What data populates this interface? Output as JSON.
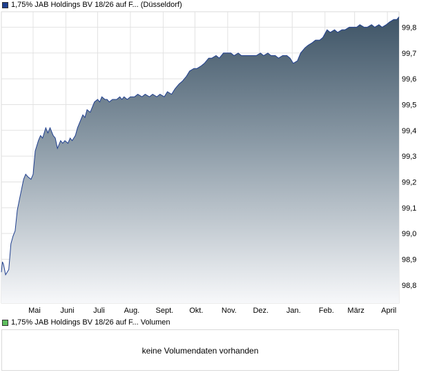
{
  "price_chart": {
    "legend_label": "1,75% JAB Holdings BV 18/26 auf F... (Düsseldorf)",
    "legend_color": "#1f3f8f"
  },
  "volume_chart": {
    "legend_label": "1,75% JAB Holdings BV 18/26 auf F... Volumen",
    "legend_color": "#5fbf5f",
    "empty_message": "keine Volumendaten vorhanden"
  },
  "chart_data": {
    "type": "area",
    "title": "",
    "xlabel": "",
    "ylabel": "",
    "ylim": [
      98.73,
      99.86
    ],
    "y_ticks": [
      "99,8",
      "99,7",
      "99,6",
      "99,5",
      "99,4",
      "99,3",
      "99,2",
      "99,1",
      "99,0",
      "98,9",
      "98,8"
    ],
    "y_tick_values": [
      99.8,
      99.7,
      99.6,
      99.5,
      99.4,
      99.3,
      99.2,
      99.1,
      99.0,
      98.9,
      98.8
    ],
    "x_ticks": [
      "Mai",
      "Juni",
      "Juli",
      "Aug.",
      "Sept.",
      "Okt.",
      "Nov.",
      "Dez.",
      "Jan.",
      "Feb.",
      "März",
      "April"
    ],
    "x_tick_dates": [
      "2024-05-01",
      "2024-06-01",
      "2024-07-01",
      "2024-08-01",
      "2024-09-01",
      "2024-10-01",
      "2024-11-01",
      "2024-12-01",
      "2025-01-01",
      "2025-02-01",
      "2025-03-01",
      "2025-04-01"
    ],
    "x_range": [
      "2024-04-01",
      "2025-04-12"
    ],
    "grid": true,
    "series": [
      {
        "name": "1,75% JAB Holdings BV 18/26 auf F... (Düsseldorf)",
        "color": "#1f3f8f",
        "points": [
          [
            "2024-04-01",
            98.85
          ],
          [
            "2024-04-02",
            98.89
          ],
          [
            "2024-04-03",
            98.88
          ],
          [
            "2024-04-05",
            98.84
          ],
          [
            "2024-04-08",
            98.86
          ],
          [
            "2024-04-10",
            98.96
          ],
          [
            "2024-04-12",
            98.99
          ],
          [
            "2024-04-14",
            99.01
          ],
          [
            "2024-04-16",
            99.09
          ],
          [
            "2024-04-18",
            99.13
          ],
          [
            "2024-04-20",
            99.17
          ],
          [
            "2024-04-22",
            99.21
          ],
          [
            "2024-04-24",
            99.23
          ],
          [
            "2024-04-26",
            99.22
          ],
          [
            "2024-04-29",
            99.21
          ],
          [
            "2024-05-01",
            99.23
          ],
          [
            "2024-05-03",
            99.32
          ],
          [
            "2024-05-06",
            99.36
          ],
          [
            "2024-05-08",
            99.38
          ],
          [
            "2024-05-10",
            99.37
          ],
          [
            "2024-05-13",
            99.41
          ],
          [
            "2024-05-15",
            99.39
          ],
          [
            "2024-05-17",
            99.41
          ],
          [
            "2024-05-20",
            99.38
          ],
          [
            "2024-05-22",
            99.37
          ],
          [
            "2024-05-24",
            99.33
          ],
          [
            "2024-05-27",
            99.36
          ],
          [
            "2024-05-29",
            99.35
          ],
          [
            "2024-05-31",
            99.36
          ],
          [
            "2024-06-03",
            99.35
          ],
          [
            "2024-06-05",
            99.37
          ],
          [
            "2024-06-07",
            99.36
          ],
          [
            "2024-06-10",
            99.38
          ],
          [
            "2024-06-12",
            99.41
          ],
          [
            "2024-06-14",
            99.43
          ],
          [
            "2024-06-17",
            99.46
          ],
          [
            "2024-06-19",
            99.45
          ],
          [
            "2024-06-21",
            99.48
          ],
          [
            "2024-06-24",
            99.47
          ],
          [
            "2024-06-26",
            99.49
          ],
          [
            "2024-06-28",
            99.51
          ],
          [
            "2024-07-01",
            99.52
          ],
          [
            "2024-07-03",
            99.51
          ],
          [
            "2024-07-05",
            99.53
          ],
          [
            "2024-07-08",
            99.52
          ],
          [
            "2024-07-10",
            99.52
          ],
          [
            "2024-07-12",
            99.51
          ],
          [
            "2024-07-15",
            99.52
          ],
          [
            "2024-07-17",
            99.52
          ],
          [
            "2024-07-19",
            99.52
          ],
          [
            "2024-07-22",
            99.53
          ],
          [
            "2024-07-24",
            99.52
          ],
          [
            "2024-07-26",
            99.53
          ],
          [
            "2024-07-29",
            99.52
          ],
          [
            "2024-08-01",
            99.53
          ],
          [
            "2024-08-05",
            99.53
          ],
          [
            "2024-08-08",
            99.54
          ],
          [
            "2024-08-12",
            99.53
          ],
          [
            "2024-08-15",
            99.54
          ],
          [
            "2024-08-19",
            99.53
          ],
          [
            "2024-08-22",
            99.54
          ],
          [
            "2024-08-26",
            99.53
          ],
          [
            "2024-08-29",
            99.54
          ],
          [
            "2024-09-02",
            99.53
          ],
          [
            "2024-09-05",
            99.55
          ],
          [
            "2024-09-09",
            99.54
          ],
          [
            "2024-09-12",
            99.56
          ],
          [
            "2024-09-16",
            99.58
          ],
          [
            "2024-09-19",
            99.59
          ],
          [
            "2024-09-23",
            99.61
          ],
          [
            "2024-09-26",
            99.63
          ],
          [
            "2024-09-30",
            99.64
          ],
          [
            "2024-10-03",
            99.64
          ],
          [
            "2024-10-07",
            99.65
          ],
          [
            "2024-10-10",
            99.66
          ],
          [
            "2024-10-14",
            99.68
          ],
          [
            "2024-10-17",
            99.68
          ],
          [
            "2024-10-21",
            99.69
          ],
          [
            "2024-10-24",
            99.68
          ],
          [
            "2024-10-28",
            99.7
          ],
          [
            "2024-10-31",
            99.7
          ],
          [
            "2024-11-04",
            99.7
          ],
          [
            "2024-11-07",
            99.69
          ],
          [
            "2024-11-11",
            99.7
          ],
          [
            "2024-11-14",
            99.69
          ],
          [
            "2024-11-18",
            99.69
          ],
          [
            "2024-11-21",
            99.69
          ],
          [
            "2024-11-25",
            99.69
          ],
          [
            "2024-11-28",
            99.69
          ],
          [
            "2024-12-02",
            99.7
          ],
          [
            "2024-12-05",
            99.69
          ],
          [
            "2024-12-09",
            99.7
          ],
          [
            "2024-12-12",
            99.69
          ],
          [
            "2024-12-16",
            99.69
          ],
          [
            "2024-12-19",
            99.68
          ],
          [
            "2024-12-23",
            99.69
          ],
          [
            "2024-12-27",
            99.69
          ],
          [
            "2024-12-30",
            99.68
          ],
          [
            "2025-01-02",
            99.66
          ],
          [
            "2025-01-06",
            99.67
          ],
          [
            "2025-01-09",
            99.7
          ],
          [
            "2025-01-13",
            99.72
          ],
          [
            "2025-01-16",
            99.73
          ],
          [
            "2025-01-20",
            99.74
          ],
          [
            "2025-01-23",
            99.75
          ],
          [
            "2025-01-27",
            99.75
          ],
          [
            "2025-01-30",
            99.76
          ],
          [
            "2025-02-03",
            99.79
          ],
          [
            "2025-02-06",
            99.78
          ],
          [
            "2025-02-10",
            99.79
          ],
          [
            "2025-02-13",
            99.78
          ],
          [
            "2025-02-17",
            99.79
          ],
          [
            "2025-02-20",
            99.79
          ],
          [
            "2025-02-24",
            99.8
          ],
          [
            "2025-02-27",
            99.8
          ],
          [
            "2025-03-03",
            99.8
          ],
          [
            "2025-03-06",
            99.81
          ],
          [
            "2025-03-10",
            99.8
          ],
          [
            "2025-03-13",
            99.8
          ],
          [
            "2025-03-17",
            99.81
          ],
          [
            "2025-03-20",
            99.8
          ],
          [
            "2025-03-24",
            99.81
          ],
          [
            "2025-03-27",
            99.8
          ],
          [
            "2025-03-31",
            99.81
          ],
          [
            "2025-04-03",
            99.82
          ],
          [
            "2025-04-07",
            99.83
          ],
          [
            "2025-04-10",
            99.83
          ],
          [
            "2025-04-12",
            99.84
          ]
        ]
      }
    ]
  }
}
